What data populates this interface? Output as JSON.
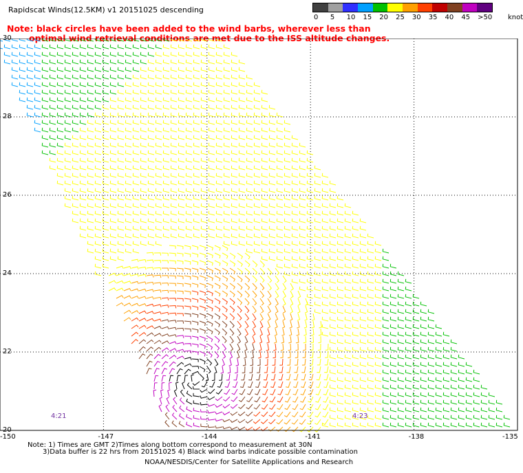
{
  "title": "Rapidscat Winds(12.5KM) v1 20151025 descending",
  "note": {
    "line1": "Note: black circles have been added to the wind barbs, wherever less than",
    "line2": "optimal wind retrieval conditions are met due to the ISS altitude changes."
  },
  "legend": {
    "unit": "knots",
    "ticks": [
      "0",
      "5",
      "10",
      "15",
      "20",
      "25",
      "30",
      "35",
      "40",
      "45",
      ">50"
    ],
    "colors": [
      "#404040",
      "#a0a0a0",
      "#3030ff",
      "#00a0ff",
      "#00c000",
      "#ffff00",
      "#ffa000",
      "#ff4000",
      "#c00000",
      "#804020",
      "#c000c0",
      "#600080"
    ]
  },
  "axes": {
    "lat_labels": [
      "30",
      "28",
      "26",
      "24",
      "22",
      "20"
    ],
    "lon_labels": [
      "-150",
      "-147",
      "-144",
      "-141",
      "-138",
      "-135"
    ]
  },
  "time_labels": [
    "4:21",
    "4:23"
  ],
  "footnote": {
    "line1": "Note: 1) Times are GMT 2)Times along bottom correspond to measurement at 30N",
    "line2": "3)Data buffer is 22 hrs from 20151025 4) Black wind barbs indicate possible contamination"
  },
  "credit": "NOAA/NESDIS/Center for Satellite Applications and Research",
  "map_data": {
    "lat_range": [
      20,
      30
    ],
    "lon_range": [
      -150,
      -135
    ],
    "storm_center": {
      "lat": 21.3,
      "lon": -144.3
    },
    "swath": "diagonal, descending from upper-left to lower-right"
  }
}
